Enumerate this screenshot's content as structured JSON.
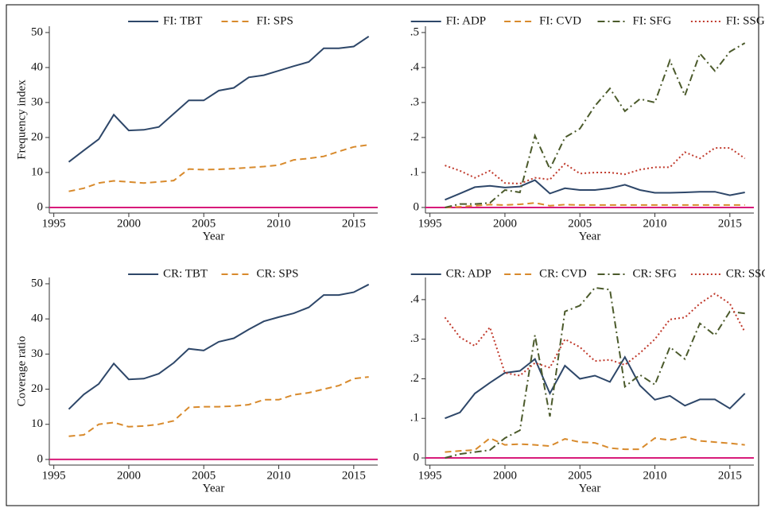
{
  "chart_data": [
    {
      "type": "line",
      "y_label": "Frequency index",
      "x_label": "Year",
      "x": [
        1996,
        1997,
        1998,
        1999,
        2000,
        2001,
        2002,
        2003,
        2004,
        2005,
        2006,
        2007,
        2008,
        2009,
        2010,
        2011,
        2012,
        2013,
        2014,
        2015,
        2016
      ],
      "xlim": [
        1994.7,
        2016.6
      ],
      "xticks": [
        1995,
        2000,
        2005,
        2010,
        2015
      ],
      "ylim": [
        -1.6,
        51.8
      ],
      "yticks": [
        0,
        10,
        20,
        30,
        40,
        50
      ],
      "hline": {
        "value": 0,
        "color": "#d81b7a"
      },
      "series": [
        {
          "name": "FI: TBT",
          "color": "#2e4769",
          "style": "solid",
          "values": [
            13,
            16.3,
            19.5,
            26.5,
            22,
            22.2,
            23,
            26.8,
            30.6,
            30.6,
            33.4,
            34.2,
            37.2,
            37.8,
            39.1,
            40.4,
            41.6,
            45.5,
            45.5,
            46,
            48.9
          ]
        },
        {
          "name": "FI: SPS",
          "color": "#d88a2c",
          "style": "dash",
          "values": [
            4.6,
            5.5,
            7,
            7.6,
            7.3,
            7,
            7.3,
            7.7,
            11,
            10.8,
            10.9,
            11.1,
            11.4,
            11.7,
            12.1,
            13.6,
            14,
            14.6,
            16,
            17.3,
            17.9
          ]
        }
      ]
    },
    {
      "type": "line",
      "x_label": "Year",
      "x": [
        1996,
        1997,
        1998,
        1999,
        2000,
        2001,
        2002,
        2003,
        2004,
        2005,
        2006,
        2007,
        2008,
        2009,
        2010,
        2011,
        2012,
        2013,
        2014,
        2015,
        2016
      ],
      "xlim": [
        1994.7,
        2016.6
      ],
      "xticks": [
        1995,
        2000,
        2005,
        2010,
        2015
      ],
      "ylim": [
        -0.016,
        0.518
      ],
      "yticks": [
        0,
        {
          "value": 0.1,
          "label": ".1"
        },
        {
          "value": 0.2,
          "label": ".2"
        },
        {
          "value": 0.3,
          "label": ".3"
        },
        {
          "value": 0.4,
          "label": ".4"
        },
        {
          "value": 0.5,
          "label": ".5"
        }
      ],
      "hline": {
        "value": 0,
        "color": "#d81b7a"
      },
      "series": [
        {
          "name": "FI: ADP",
          "color": "#2e4769",
          "style": "solid",
          "values": [
            0.022,
            0.04,
            0.058,
            0.062,
            0.057,
            0.06,
            0.078,
            0.04,
            0.055,
            0.05,
            0.05,
            0.055,
            0.065,
            0.05,
            0.042,
            0.042,
            0.043,
            0.045,
            0.045,
            0.035,
            0.043
          ]
        },
        {
          "name": "FI: CVD",
          "color": "#d88a2c",
          "style": "dash",
          "values": [
            0,
            0.002,
            0.005,
            0.008,
            0.007,
            0.009,
            0.013,
            0.005,
            0.008,
            0.007,
            0.007,
            0.007,
            0.007,
            0.007,
            0.007,
            0.007,
            0.007,
            0.007,
            0.007,
            0.007,
            0.007
          ]
        },
        {
          "name": "FI: SFG",
          "color": "#4b5a2b",
          "style": "dashdot",
          "values": [
            0,
            0.01,
            0.01,
            0.013,
            0.05,
            0.043,
            0.205,
            0.11,
            0.2,
            0.225,
            0.29,
            0.34,
            0.275,
            0.31,
            0.3,
            0.42,
            0.32,
            0.44,
            0.39,
            0.445,
            0.47
          ]
        },
        {
          "name": "FI: SSG",
          "color": "#c0392b",
          "style": "dot",
          "values": [
            0.12,
            0.105,
            0.085,
            0.105,
            0.07,
            0.068,
            0.085,
            0.08,
            0.125,
            0.097,
            0.1,
            0.1,
            0.095,
            0.108,
            0.115,
            0.115,
            0.158,
            0.14,
            0.17,
            0.17,
            0.14
          ]
        }
      ]
    },
    {
      "type": "line",
      "y_label": "Coverage ratio",
      "x_label": "Year",
      "x": [
        1996,
        1997,
        1998,
        1999,
        2000,
        2001,
        2002,
        2003,
        2004,
        2005,
        2006,
        2007,
        2008,
        2009,
        2010,
        2011,
        2012,
        2013,
        2014,
        2015,
        2016
      ],
      "xlim": [
        1994.7,
        2016.6
      ],
      "xticks": [
        1995,
        2000,
        2005,
        2010,
        2015
      ],
      "ylim": [
        -1.6,
        51.8
      ],
      "yticks": [
        0,
        10,
        20,
        30,
        40,
        50
      ],
      "hline": {
        "value": 0,
        "color": "#d81b7a"
      },
      "series": [
        {
          "name": "CR: TBT",
          "color": "#2e4769",
          "style": "solid",
          "values": [
            14.3,
            18.5,
            21.5,
            27.3,
            22.8,
            23,
            24.4,
            27.5,
            31.5,
            31,
            33.5,
            34.5,
            37,
            39.3,
            40.5,
            41.6,
            43.3,
            46.8,
            46.8,
            47.6,
            49.8
          ]
        },
        {
          "name": "CR: SPS",
          "color": "#d88a2c",
          "style": "dash",
          "values": [
            6.6,
            7,
            10,
            10.5,
            9.3,
            9.5,
            10,
            11,
            14.8,
            15,
            15,
            15.2,
            15.6,
            17,
            17,
            18.4,
            19,
            20,
            21,
            23,
            23.5
          ]
        }
      ]
    },
    {
      "type": "line",
      "x_label": "Year",
      "x": [
        1996,
        1997,
        1998,
        1999,
        2000,
        2001,
        2002,
        2003,
        2004,
        2005,
        2006,
        2007,
        2008,
        2009,
        2010,
        2011,
        2012,
        2013,
        2014,
        2015,
        2016
      ],
      "xlim": [
        1994.7,
        2016.6
      ],
      "xticks": [
        1995,
        2000,
        2005,
        2010,
        2015
      ],
      "ylim": [
        -0.018,
        0.456
      ],
      "yticks": [
        0,
        {
          "value": 0.1,
          "label": ".1"
        },
        {
          "value": 0.2,
          "label": ".2"
        },
        {
          "value": 0.3,
          "label": ".3"
        },
        {
          "value": 0.4,
          "label": ".4"
        }
      ],
      "hline": {
        "value": 0,
        "color": "#d81b7a"
      },
      "series": [
        {
          "name": "CR: ADP",
          "color": "#2e4769",
          "style": "solid",
          "values": [
            0.1,
            0.115,
            0.163,
            0.19,
            0.215,
            0.22,
            0.25,
            0.163,
            0.233,
            0.2,
            0.208,
            0.192,
            0.255,
            0.183,
            0.147,
            0.157,
            0.132,
            0.148,
            0.148,
            0.125,
            0.163
          ]
        },
        {
          "name": "CR: CVD",
          "color": "#d88a2c",
          "style": "dash",
          "values": [
            0.015,
            0.018,
            0.02,
            0.05,
            0.033,
            0.035,
            0.033,
            0.03,
            0.048,
            0.04,
            0.038,
            0.025,
            0.022,
            0.022,
            0.05,
            0.045,
            0.053,
            0.043,
            0.04,
            0.037,
            0.033
          ]
        },
        {
          "name": "CR: SFG",
          "color": "#4b5a2b",
          "style": "dashdot",
          "values": [
            0,
            0.01,
            0.015,
            0.02,
            0.05,
            0.07,
            0.31,
            0.105,
            0.37,
            0.385,
            0.43,
            0.425,
            0.18,
            0.21,
            0.185,
            0.28,
            0.25,
            0.34,
            0.31,
            0.37,
            0.365
          ]
        },
        {
          "name": "CR: SSG",
          "color": "#c0392b",
          "style": "dot",
          "values": [
            0.355,
            0.305,
            0.283,
            0.33,
            0.215,
            0.208,
            0.24,
            0.228,
            0.3,
            0.28,
            0.245,
            0.248,
            0.235,
            0.265,
            0.3,
            0.35,
            0.355,
            0.39,
            0.415,
            0.39,
            0.318
          ]
        }
      ]
    }
  ]
}
